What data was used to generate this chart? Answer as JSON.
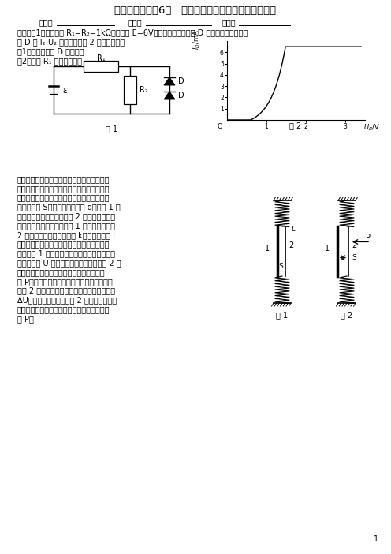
{
  "title": "高二物理竞赛（6）   静电场、稳恒电流和物质的导电性",
  "header_label1": "班级：",
  "header_label2": "姓名：",
  "header_label3": "座号：",
  "s1_line1": "一、如图1所示，电阻 R₁=R₂=1kΩ，电动势 E=6V，两个相同的二极管 D 串联在电路中，二极",
  "s1_line2": "管 D 的 I₂-U₂ 特性曲线如图 2 所示。试求：",
  "s1_line3": "（1）通过二极管 D 的电流；",
  "s1_line4": "（2）电阻 R₁ 消耗的功率。",
  "fig1_label": "图 1",
  "fig2_label": "图 2",
  "s2_lines": [
    "二、某些非电磁量的测量是可以通过一些相应",
    "的装置转化为电磁量来测量的。一平板电容器",
    "的两个极板竖直放置在光滑的水平平台上，极",
    "板的面积为 S，极板间的距离为 d，极板 1 固",
    "定不动，与周围绝缘；极板 2 接地，且可在水",
    "平平台上滑动并始终与极板 1 保持平行。极板",
    "2 的两个侧边与劲度系数为 k，自然长度为 L",
    "的两个完全相同的弹簧相连，两弹簧的另一端",
    "固定。图 1 是这一装置的俯视图。先将电容器",
    "充电至电压 U 后即与电源断开，再在极板 2 的",
    "右侧的整个表面上施以均匀的向左的待测压",
    "强 P，使两极板之间的距离发生很小的变化。",
    "如图 2 所示，测得此时电容器的电压改变量为",
    "ΔU，这作用在电容器极板 2 上的静电作用力",
    "不致引起弹簧的可测量到的形变，试求待测压",
    "强 P。"
  ],
  "fig3_label": "图 1",
  "fig4_label": "图 2",
  "page_number": "1",
  "bg": "#ffffff"
}
